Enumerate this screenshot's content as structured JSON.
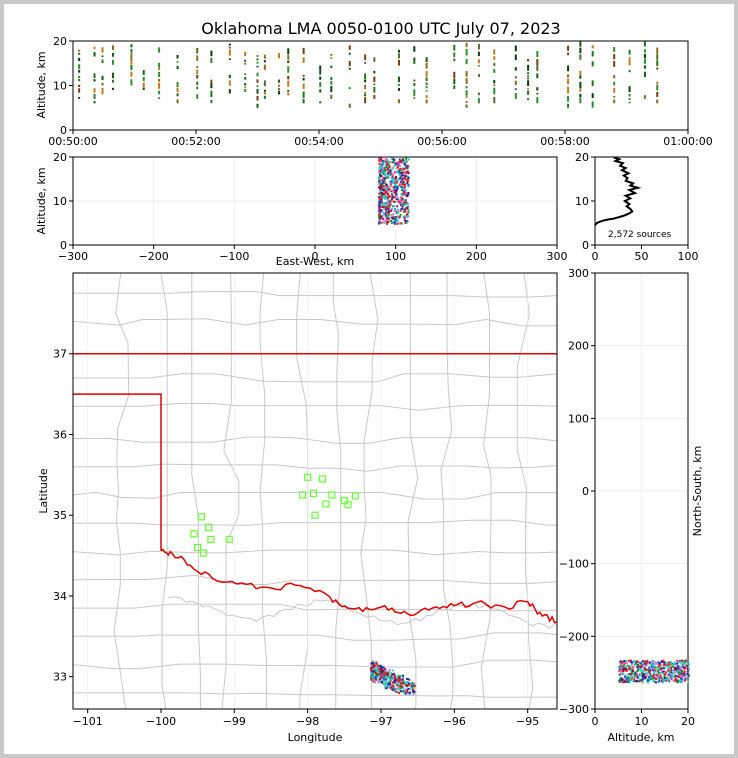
{
  "chart_data": {
    "title": "Oklahoma LMA 0050-0100 UTC July 07, 2023",
    "time_height": {
      "type": "scatter",
      "ylabel": "Altitude, km",
      "ylim": [
        0,
        20
      ],
      "yticks": [
        "0",
        "10",
        "20"
      ],
      "xticks": [
        "00:50:00",
        "00:52:00",
        "00:54:00",
        "00:56:00",
        "00:58:00",
        "01:00:00"
      ],
      "columns": [
        {
          "t": 0.1,
          "alt": [
            7,
            18
          ]
        },
        {
          "t": 0.35,
          "alt": [
            6,
            19
          ]
        },
        {
          "t": 0.48,
          "alt": [
            8,
            18
          ]
        },
        {
          "t": 0.65,
          "alt": [
            9,
            18
          ]
        },
        {
          "t": 0.95,
          "alt": [
            10,
            19
          ]
        },
        {
          "t": 1.15,
          "alt": [
            9,
            14
          ]
        },
        {
          "t": 1.4,
          "alt": [
            7,
            18
          ]
        },
        {
          "t": 1.7,
          "alt": [
            6,
            17
          ]
        },
        {
          "t": 2.02,
          "alt": [
            7,
            19
          ]
        },
        {
          "t": 2.25,
          "alt": [
            6,
            19
          ]
        },
        {
          "t": 2.55,
          "alt": [
            7,
            19
          ]
        },
        {
          "t": 2.8,
          "alt": [
            6,
            18
          ]
        },
        {
          "t": 3.0,
          "alt": [
            5,
            19
          ]
        },
        {
          "t": 3.12,
          "alt": [
            7,
            18
          ]
        },
        {
          "t": 3.35,
          "alt": [
            8,
            17
          ]
        },
        {
          "t": 3.5,
          "alt": [
            6,
            18
          ]
        },
        {
          "t": 3.75,
          "alt": [
            6,
            19
          ]
        },
        {
          "t": 4.02,
          "alt": [
            6,
            19
          ]
        },
        {
          "t": 4.2,
          "alt": [
            7,
            18
          ]
        },
        {
          "t": 4.5,
          "alt": [
            5,
            19
          ]
        },
        {
          "t": 4.75,
          "alt": [
            6,
            18
          ]
        },
        {
          "t": 4.9,
          "alt": [
            7,
            17
          ]
        },
        {
          "t": 5.3,
          "alt": [
            6,
            18
          ]
        },
        {
          "t": 5.55,
          "alt": [
            7,
            18
          ]
        },
        {
          "t": 5.75,
          "alt": [
            6,
            17
          ]
        },
        {
          "t": 6.2,
          "alt": [
            6,
            18
          ]
        },
        {
          "t": 6.4,
          "alt": [
            5,
            19
          ]
        },
        {
          "t": 6.6,
          "alt": [
            6,
            19
          ]
        },
        {
          "t": 6.85,
          "alt": [
            6,
            18
          ]
        },
        {
          "t": 7.2,
          "alt": [
            7,
            18
          ]
        },
        {
          "t": 7.4,
          "alt": [
            6,
            17
          ]
        },
        {
          "t": 7.55,
          "alt": [
            6,
            18
          ]
        },
        {
          "t": 8.05,
          "alt": [
            5,
            19
          ]
        },
        {
          "t": 8.25,
          "alt": [
            6,
            19
          ]
        },
        {
          "t": 8.45,
          "alt": [
            5,
            19
          ]
        },
        {
          "t": 8.8,
          "alt": [
            6,
            18
          ]
        },
        {
          "t": 9.05,
          "alt": [
            6,
            18
          ]
        },
        {
          "t": 9.3,
          "alt": [
            7,
            19
          ]
        },
        {
          "t": 9.5,
          "alt": [
            6,
            19
          ]
        }
      ]
    },
    "ew_height": {
      "type": "scatter",
      "xlabel": "East-West, km",
      "ylabel": "Altitude, km",
      "xlim": [
        -300,
        300
      ],
      "ylim": [
        0,
        20
      ],
      "xticks": [
        "−300",
        "−200",
        "−100",
        "0",
        "100",
        "200",
        "300"
      ],
      "yticks": [
        "0",
        "10",
        "20"
      ],
      "cluster": {
        "x": [
          78,
          115
        ],
        "alt": [
          5,
          20
        ]
      }
    },
    "histogram": {
      "type": "line",
      "xlim": [
        0,
        100
      ],
      "ylim": [
        0,
        20
      ],
      "xticks": [
        "0",
        "50",
        "100"
      ],
      "yticks": [
        "0",
        "10",
        "20"
      ],
      "count_label": "2,572 sources",
      "profile": [
        [
          0,
          4.5
        ],
        [
          2,
          5
        ],
        [
          8,
          5.5
        ],
        [
          14,
          5.8
        ],
        [
          20,
          6
        ],
        [
          25,
          6.3
        ],
        [
          30,
          6.6
        ],
        [
          35,
          7
        ],
        [
          40,
          7.6
        ],
        [
          38,
          8.2
        ],
        [
          34,
          8.8
        ],
        [
          37,
          9.3
        ],
        [
          32,
          10
        ],
        [
          38,
          10.6
        ],
        [
          33,
          11.2
        ],
        [
          43,
          11.8
        ],
        [
          37,
          12.5
        ],
        [
          46,
          13
        ],
        [
          38,
          13.5
        ],
        [
          41,
          14
        ],
        [
          33,
          14.6
        ],
        [
          35,
          15.2
        ],
        [
          31,
          15.8
        ],
        [
          36,
          16.3
        ],
        [
          29,
          17
        ],
        [
          33,
          17.5
        ],
        [
          27,
          18
        ],
        [
          30,
          18.6
        ],
        [
          22,
          19.1
        ],
        [
          26,
          19.5
        ],
        [
          20,
          19.9
        ]
      ]
    },
    "plan_view": {
      "type": "scatter",
      "xlabel": "Longitude",
      "ylabel": "Latitude",
      "xlim": [
        -101.2,
        -94.6
      ],
      "ylim": [
        32.6,
        38.0
      ],
      "xticks": [
        "−101",
        "−100",
        "−99",
        "−98",
        "−97",
        "−96",
        "−95"
      ],
      "yticks": [
        "33",
        "34",
        "35",
        "36",
        "37"
      ],
      "stations": [
        {
          "lon": -98.0,
          "lat": 35.47
        },
        {
          "lon": -97.8,
          "lat": 35.45
        },
        {
          "lon": -98.07,
          "lat": 35.25
        },
        {
          "lon": -97.92,
          "lat": 35.27
        },
        {
          "lon": -97.67,
          "lat": 35.25
        },
        {
          "lon": -97.5,
          "lat": 35.18
        },
        {
          "lon": -97.35,
          "lat": 35.24
        },
        {
          "lon": -97.75,
          "lat": 35.14
        },
        {
          "lon": -97.45,
          "lat": 35.13
        },
        {
          "lon": -97.9,
          "lat": 35.0
        },
        {
          "lon": -99.45,
          "lat": 34.98
        },
        {
          "lon": -99.35,
          "lat": 34.85
        },
        {
          "lon": -99.55,
          "lat": 34.77
        },
        {
          "lon": -99.32,
          "lat": 34.7
        },
        {
          "lon": -99.5,
          "lat": 34.6
        },
        {
          "lon": -99.42,
          "lat": 34.53
        },
        {
          "lon": -99.07,
          "lat": 34.7
        }
      ],
      "source_cluster": {
        "lon": [
          -97.15,
          -96.55
        ],
        "lat": [
          32.8,
          33.25
        ]
      }
    },
    "ns_height": {
      "type": "scatter",
      "xlabel": "Altitude, km",
      "ylabel": "North-South, km",
      "xlim": [
        0,
        20
      ],
      "ylim": [
        -300,
        300
      ],
      "xticks": [
        "0",
        "10",
        "20"
      ],
      "yticks": [
        "−300",
        "−200",
        "−100",
        "0",
        "100",
        "200",
        "300"
      ],
      "cluster": {
        "alt": [
          5,
          20
        ],
        "ns": [
          -262,
          -232
        ]
      }
    },
    "colors": {
      "state_border": "#e00000",
      "county_lines": "#c8c8c8",
      "station_marker": "#66ff33",
      "gridlines": "#eeeeee"
    }
  }
}
